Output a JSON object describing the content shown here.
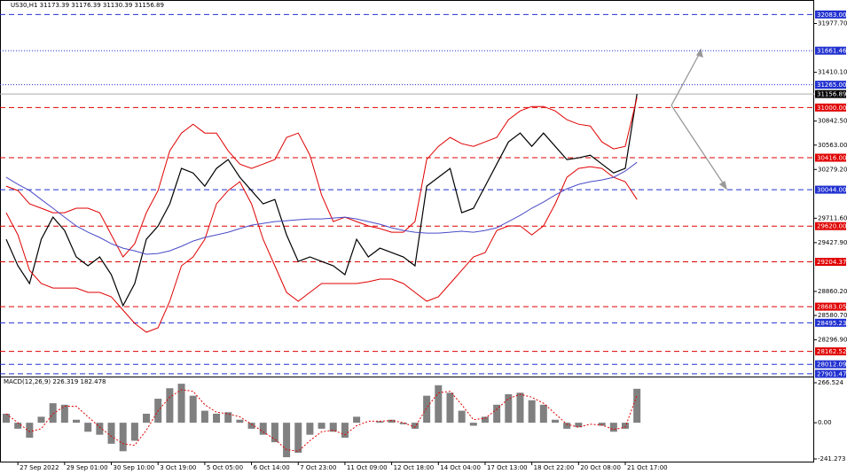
{
  "chart_data": [
    {
      "type": "line",
      "header": "US30,H1  31173.39 31176.39 31130.39 31156.89",
      "categories": [
        null,
        "27 Sep 2022",
        null,
        null,
        null,
        "29 Sep 01:00",
        null,
        null,
        null,
        "30 Sep 10:00",
        null,
        null,
        null,
        "3 Oct 19:00",
        null,
        null,
        null,
        "5 Oct 05:00",
        null,
        null,
        null,
        "6 Oct 14:00",
        null,
        null,
        null,
        "7 Oct 23:00",
        null,
        null,
        null,
        "11 Oct 09:00",
        null,
        null,
        null,
        "12 Oct 18:00",
        null,
        null,
        null,
        "14 Oct 04:00",
        null,
        null,
        null,
        "17 Oct 13:00",
        null,
        null,
        null,
        "18 Oct 22:00",
        null,
        null,
        null,
        "20 Oct 08:00",
        null,
        null,
        null,
        "21 Oct 17:00",
        null
      ],
      "ylim": [
        27880,
        32210
      ],
      "yticks": [
        {
          "value": 31977.7,
          "label": "31977.70"
        },
        {
          "value": 31410.1,
          "label": "31410.10"
        },
        {
          "value": 30842.5,
          "label": "30842.50"
        },
        {
          "value": 30563,
          "label": "30563.00"
        },
        {
          "value": 30279.2,
          "label": "30279.20"
        },
        {
          "value": 29711.6,
          "label": "29711.60"
        },
        {
          "value": 29427.9,
          "label": "29427.90"
        },
        {
          "value": 28860.2,
          "label": "28860.20"
        },
        {
          "value": 28580.7,
          "label": "28580.70"
        },
        {
          "value": 28296.9,
          "label": "28296.90"
        }
      ],
      "levels": [
        {
          "value": 32083,
          "label": "32083.00",
          "color": "#2030d0",
          "style": "dashed"
        },
        {
          "value": 31661.46,
          "label": "31661.46",
          "color": "#2030d0",
          "style": "dotted"
        },
        {
          "value": 31265,
          "label": "31265.00",
          "color": "#2030d0",
          "style": "dotted"
        },
        {
          "value": 31156.89,
          "label": "31156.89",
          "color": "#000000",
          "style": "solid"
        },
        {
          "value": 31000,
          "label": "31000.00",
          "color": "#e00000",
          "style": "dashed"
        },
        {
          "value": 30416,
          "label": "30416.00",
          "color": "#e00000",
          "style": "dashed"
        },
        {
          "value": 30044,
          "label": "30044.00",
          "color": "#2030d0",
          "style": "dashed"
        },
        {
          "value": 29620,
          "label": "29620.00",
          "color": "#e00000",
          "style": "dashed"
        },
        {
          "value": 29204.37,
          "label": "29204.37",
          "color": "#e00000",
          "style": "dashed"
        },
        {
          "value": 28683.05,
          "label": "28683.05",
          "color": "#e00000",
          "style": "dashed"
        },
        {
          "value": 28495.23,
          "label": "28495.23",
          "color": "#2030d0",
          "style": "dashed"
        },
        {
          "value": 28162.52,
          "label": "28162.52",
          "color": "#e00000",
          "style": "dashed"
        },
        {
          "value": 28012.09,
          "label": "28012.09",
          "color": "#2030d0",
          "style": "dashed"
        },
        {
          "value": 27901.47,
          "label": "27901.47",
          "color": "#2030d0",
          "style": "dashed"
        }
      ],
      "series": [
        {
          "color": "#000000",
          "values": [
            29467,
            29158,
            28952,
            29467,
            29724,
            29570,
            29261,
            29158,
            29261,
            29055,
            28694,
            28952,
            29467,
            29621,
            29879,
            30291,
            30239,
            30085,
            30291,
            30394,
            30188,
            30033,
            29879,
            29930,
            29518,
            29209,
            29261,
            29209,
            29158,
            29055,
            29467,
            29261,
            29364,
            29312,
            29261,
            29158,
            30085,
            30188,
            30291,
            29776,
            29827,
            30085,
            30342,
            30600,
            30703,
            30548,
            30703,
            30548,
            30394,
            30414,
            30445,
            30342,
            30239,
            30291,
            31156.89
          ]
        },
        {
          "color": "#e00000",
          "values": [
            30085,
            30034,
            29879,
            29828,
            29776,
            29776,
            29828,
            29828,
            29776,
            29518,
            29261,
            29415,
            29776,
            30034,
            30497,
            30703,
            30806,
            30703,
            30703,
            30497,
            30342,
            30291,
            30342,
            30394,
            30652,
            30703,
            30446,
            29982,
            29673,
            29724,
            29673,
            29622,
            29591,
            29549,
            29549,
            29673,
            30394,
            30548,
            30652,
            30579,
            30548,
            30600,
            30652,
            30858,
            30960,
            31012,
            31012,
            30960,
            30858,
            30806,
            30785,
            30600,
            30518,
            30548,
            31115
          ]
        },
        {
          "color": "#e00000",
          "values": [
            29776,
            29518,
            29106,
            28952,
            28900,
            28900,
            28900,
            28849,
            28849,
            28798,
            28643,
            28488,
            28385,
            28437,
            28746,
            29158,
            29261,
            29467,
            29879,
            30034,
            30137,
            29879,
            29467,
            29158,
            28849,
            28746,
            28849,
            28952,
            28952,
            28952,
            28952,
            28973,
            29004,
            29004,
            28952,
            28849,
            28746,
            28798,
            28952,
            29106,
            29261,
            29312,
            29570,
            29622,
            29622,
            29518,
            29622,
            29879,
            30188,
            30291,
            30312,
            30291,
            30188,
            30137,
            29930
          ]
        },
        {
          "color": "#4a4ac8",
          "values": [
            30188,
            30106,
            30034,
            29930,
            29828,
            29724,
            29622,
            29549,
            29488,
            29415,
            29364,
            29333,
            29292,
            29302,
            29333,
            29385,
            29446,
            29488,
            29518,
            29549,
            29591,
            29632,
            29652,
            29673,
            29683,
            29694,
            29704,
            29704,
            29714,
            29724,
            29704,
            29673,
            29642,
            29601,
            29570,
            29549,
            29539,
            29539,
            29549,
            29560,
            29549,
            29570,
            29601,
            29673,
            29745,
            29828,
            29900,
            29982,
            30054,
            30106,
            30137,
            30157,
            30188,
            30260,
            30363
          ]
        }
      ]
    },
    {
      "type": "macd",
      "title": "MACD(12,26,9) 226.319 182.478",
      "ylim": [
        -265,
        302
      ],
      "yticks": [
        {
          "value": 266.524,
          "label": "266.524"
        },
        {
          "value": 0,
          "label": "0.00"
        },
        {
          "value": -241.273,
          "label": "-241.273"
        }
      ],
      "series": [
        {
          "color": "#808080",
          "values": [
            60,
            -40,
            -100,
            40,
            130,
            120,
            20,
            -60,
            -80,
            -140,
            -190,
            -120,
            60,
            160,
            230,
            260,
            180,
            80,
            60,
            70,
            20,
            -40,
            -80,
            -130,
            -230,
            -200,
            -80,
            -40,
            -60,
            -100,
            40,
            0,
            10,
            20,
            -10,
            -40,
            180,
            250,
            200,
            80,
            -20,
            40,
            120,
            190,
            200,
            150,
            120,
            20,
            -40,
            -30,
            0,
            -20,
            -60,
            -40,
            226.319
          ]
        },
        {
          "color": "#e00000",
          "values": [
            60,
            0,
            -60,
            -40,
            60,
            110,
            110,
            40,
            -30,
            -90,
            -140,
            -150,
            -50,
            80,
            170,
            220,
            210,
            120,
            70,
            60,
            40,
            -10,
            -60,
            -110,
            -180,
            -190,
            -120,
            -60,
            -50,
            -80,
            -20,
            10,
            10,
            15,
            0,
            -30,
            100,
            200,
            210,
            120,
            20,
            30,
            90,
            160,
            190,
            170,
            130,
            60,
            -10,
            -30,
            -10,
            -15,
            -45,
            -30,
            182.478
          ]
        }
      ]
    }
  ]
}
